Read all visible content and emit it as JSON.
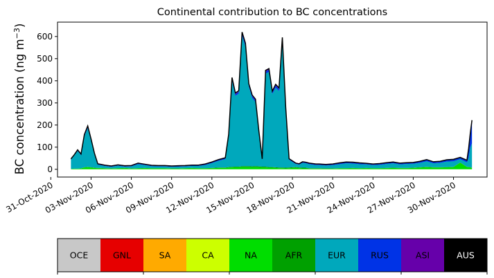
{
  "chart_data": {
    "type": "area",
    "title": "Continental contribution to BC concentrations",
    "ylabel": "BC concentration (ng m",
    "ylabel_sup": "−3",
    "ylabel_close": ")",
    "xlabel": "",
    "ylim": [
      -35,
      665
    ],
    "xlim": [
      "2020-10-31T12:00",
      "2020-12-02T12:00"
    ],
    "yticks": [
      0,
      100,
      200,
      300,
      400,
      500,
      600
    ],
    "xticks": [
      {
        "date": "2020-10-31",
        "label": "31-Oct-2020"
      },
      {
        "date": "2020-11-03",
        "label": "03-Nov-2020"
      },
      {
        "date": "2020-11-06",
        "label": "06-Nov-2020"
      },
      {
        "date": "2020-11-09",
        "label": "09-Nov-2020"
      },
      {
        "date": "2020-11-12",
        "label": "12-Nov-2020"
      },
      {
        "date": "2020-11-15",
        "label": "15-Nov-2020"
      },
      {
        "date": "2020-11-18",
        "label": "18-Nov-2020"
      },
      {
        "date": "2020-11-21",
        "label": "21-Nov-2020"
      },
      {
        "date": "2020-11-24",
        "label": "24-Nov-2020"
      },
      {
        "date": "2020-11-27",
        "label": "27-Nov-2020"
      },
      {
        "date": "2020-11-30",
        "label": "30-Nov-2020"
      }
    ],
    "grid": false,
    "legend_placement": "bottom colorbar",
    "total_line_color": "#000000",
    "x": [
      "2020-11-01T12:00",
      "2020-11-01T18:00",
      "2020-11-02T00:00",
      "2020-11-02T06:00",
      "2020-11-02T12:00",
      "2020-11-02T18:00",
      "2020-11-03T00:00",
      "2020-11-03T06:00",
      "2020-11-03T12:00",
      "2020-11-03T18:00",
      "2020-11-04T00:00",
      "2020-11-04T12:00",
      "2020-11-05T00:00",
      "2020-11-05T12:00",
      "2020-11-06T00:00",
      "2020-11-06T12:00",
      "2020-11-07T00:00",
      "2020-11-07T12:00",
      "2020-11-08T00:00",
      "2020-11-08T12:00",
      "2020-11-09T00:00",
      "2020-11-09T12:00",
      "2020-11-10T00:00",
      "2020-11-10T12:00",
      "2020-11-11T00:00",
      "2020-11-11T12:00",
      "2020-11-12T00:00",
      "2020-11-12T12:00",
      "2020-11-13T00:00",
      "2020-11-13T06:00",
      "2020-11-13T12:00",
      "2020-11-13T18:00",
      "2020-11-14T00:00",
      "2020-11-14T06:00",
      "2020-11-14T12:00",
      "2020-11-14T18:00",
      "2020-11-15T00:00",
      "2020-11-15T06:00",
      "2020-11-15T12:00",
      "2020-11-15T18:00",
      "2020-11-16T00:00",
      "2020-11-16T06:00",
      "2020-11-16T12:00",
      "2020-11-16T18:00",
      "2020-11-17T00:00",
      "2020-11-17T06:00",
      "2020-11-17T12:00",
      "2020-11-17T18:00",
      "2020-11-18T00:00",
      "2020-11-18T06:00",
      "2020-11-18T12:00",
      "2020-11-18T18:00",
      "2020-11-19T00:00",
      "2020-11-19T06:00",
      "2020-11-19T12:00",
      "2020-11-19T18:00",
      "2020-11-20T00:00",
      "2020-11-20T06:00",
      "2020-11-20T12:00",
      "2020-11-21T00:00",
      "2020-11-21T12:00",
      "2020-11-22T00:00",
      "2020-11-22T12:00",
      "2020-11-23T00:00",
      "2020-11-23T12:00",
      "2020-11-24T00:00",
      "2020-11-24T12:00",
      "2020-11-25T00:00",
      "2020-11-25T12:00",
      "2020-11-26T00:00",
      "2020-11-26T12:00",
      "2020-11-27T00:00",
      "2020-11-27T12:00",
      "2020-11-28T00:00",
      "2020-11-28T12:00",
      "2020-11-29T00:00",
      "2020-11-29T12:00",
      "2020-11-30T00:00",
      "2020-11-30T12:00",
      "2020-12-01T00:00",
      "2020-12-01T03:00",
      "2020-12-01T06:00",
      "2020-12-01T09:00"
    ],
    "series": [
      {
        "name": "OCE",
        "color": "#c8c8c8",
        "values": [
          0,
          0,
          0,
          0,
          0,
          0,
          0,
          0,
          0,
          0,
          0,
          0,
          0,
          0,
          0,
          0,
          0,
          0,
          0,
          0,
          0,
          0,
          0,
          0,
          0,
          0,
          0,
          0,
          0,
          0,
          0,
          0,
          0,
          0,
          0,
          0,
          0,
          0,
          0,
          0,
          0,
          0,
          0,
          0,
          0,
          0,
          0,
          0,
          0,
          0,
          0,
          0,
          0,
          0,
          0,
          0,
          0,
          0,
          0,
          0,
          0,
          0,
          0,
          0,
          0,
          0,
          0,
          0,
          0,
          0,
          0,
          0,
          0,
          0,
          0,
          0,
          0,
          0,
          0,
          0,
          0,
          0,
          0
        ]
      },
      {
        "name": "GNL",
        "color": "#e60000",
        "values": [
          0,
          0,
          0,
          0,
          0,
          0,
          0,
          0,
          0,
          0,
          0,
          0,
          0,
          0,
          0,
          0,
          0,
          0,
          0,
          0,
          0,
          0,
          0,
          0,
          0,
          0,
          0,
          0,
          0,
          0,
          0,
          0,
          0,
          0,
          0,
          0,
          0,
          0,
          0,
          0,
          0,
          0,
          0,
          0,
          0,
          0,
          0,
          0,
          0,
          0,
          0,
          0,
          0,
          0,
          0,
          0,
          0,
          0,
          0,
          0,
          0,
          0,
          0,
          0,
          0,
          0,
          0,
          0,
          0,
          0,
          0,
          0,
          0,
          0,
          0,
          0,
          0,
          0,
          0,
          0,
          0,
          0,
          0
        ]
      },
      {
        "name": "SA",
        "color": "#ffaa00",
        "values": [
          0,
          0,
          0,
          0,
          0,
          0,
          0,
          0,
          0,
          0,
          0,
          0,
          0,
          0,
          0,
          0,
          0,
          0,
          0,
          0,
          0,
          0,
          0,
          0,
          0,
          0,
          0,
          0,
          0,
          0,
          0,
          0,
          0,
          0,
          0,
          0,
          0,
          0,
          0,
          0,
          0,
          0,
          0,
          0,
          0,
          0,
          0,
          0,
          0,
          0,
          0,
          0,
          0,
          0,
          0,
          0,
          0,
          0,
          0,
          0,
          0,
          0,
          0,
          0,
          0,
          0,
          0,
          0,
          0,
          0,
          0,
          0,
          0,
          0,
          0,
          0,
          0,
          0,
          0,
          0,
          0,
          0,
          0
        ]
      },
      {
        "name": "CA",
        "color": "#ccff00",
        "values": [
          0,
          0,
          0,
          0,
          0,
          0,
          0,
          0,
          0,
          0,
          0,
          0,
          0,
          0,
          0,
          0,
          0,
          0,
          0,
          0,
          0,
          0,
          0,
          0,
          0,
          0,
          0,
          0,
          0,
          0,
          0,
          0,
          0,
          0,
          0,
          0,
          0,
          0,
          0,
          0,
          0,
          0,
          0,
          0,
          0,
          0,
          0,
          0,
          0,
          0,
          0,
          0,
          0,
          0,
          0,
          0,
          0,
          0,
          0,
          0,
          0,
          0,
          0,
          0,
          0,
          0,
          0,
          0,
          0,
          0,
          0,
          0,
          0,
          0,
          0,
          0,
          0,
          0,
          0,
          0,
          0,
          0,
          0
        ]
      },
      {
        "name": "NA",
        "color": "#00dd00",
        "values": [
          2,
          3,
          3,
          4,
          8,
          10,
          8,
          6,
          5,
          5,
          4,
          3,
          4,
          5,
          3,
          4,
          5,
          4,
          4,
          4,
          3,
          3,
          4,
          5,
          4,
          4,
          5,
          6,
          6,
          8,
          8,
          9,
          9,
          10,
          10,
          10,
          9,
          10,
          9,
          8,
          8,
          7,
          7,
          6,
          5,
          5,
          4,
          5,
          6,
          7,
          5,
          4,
          4,
          3,
          3,
          3,
          3,
          3,
          3,
          3,
          4,
          4,
          5,
          4,
          5,
          4,
          4,
          5,
          6,
          5,
          5,
          6,
          8,
          10,
          8,
          8,
          9,
          10,
          30,
          10,
          10,
          8,
          6
        ]
      },
      {
        "name": "AFR",
        "color": "#00a000",
        "values": [
          0,
          0,
          0,
          0,
          1,
          1,
          1,
          1,
          1,
          1,
          1,
          1,
          1,
          1,
          1,
          1,
          1,
          1,
          1,
          1,
          1,
          1,
          1,
          1,
          1,
          1,
          1,
          2,
          2,
          2,
          3,
          3,
          3,
          4,
          4,
          4,
          4,
          4,
          4,
          4,
          4,
          3,
          3,
          3,
          3,
          3,
          3,
          3,
          3,
          3,
          3,
          3,
          3,
          2,
          2,
          2,
          2,
          1,
          1,
          1,
          1,
          1,
          1,
          1,
          1,
          1,
          1,
          1,
          1,
          1,
          1,
          1,
          1,
          1,
          1,
          1,
          1,
          1,
          1,
          1,
          1,
          1,
          1
        ]
      },
      {
        "name": "EUR",
        "color": "#00a8bc",
        "values": [
          42,
          60,
          80,
          60,
          140,
          175,
          120,
          60,
          14,
          12,
          10,
          7,
          11,
          6,
          9,
          18,
          13,
          9,
          8,
          8,
          7,
          8,
          8,
          9,
          10,
          14,
          22,
          30,
          38,
          140,
          390,
          320,
          330,
          590,
          540,
          360,
          310,
          290,
          150,
          30,
          420,
          430,
          330,
          360,
          345,
          570,
          260,
          35,
          24,
          14,
          13,
          22,
          20,
          18,
          16,
          14,
          14,
          14,
          13,
          15,
          18,
          22,
          20,
          18,
          16,
          14,
          15,
          18,
          20,
          16,
          18,
          18,
          20,
          25,
          18,
          20,
          25,
          25,
          15,
          20,
          40,
          90,
          110
        ]
      },
      {
        "name": "RUS",
        "color": "#0033e6",
        "values": [
          2,
          2,
          3,
          3,
          5,
          7,
          5,
          4,
          3,
          2,
          2,
          2,
          2,
          2,
          2,
          3,
          2,
          2,
          2,
          2,
          2,
          2,
          2,
          2,
          2,
          3,
          3,
          4,
          4,
          5,
          9,
          8,
          8,
          10,
          10,
          8,
          8,
          8,
          6,
          3,
          10,
          10,
          8,
          10,
          10,
          12,
          8,
          3,
          3,
          2,
          2,
          3,
          3,
          3,
          3,
          3,
          3,
          3,
          3,
          3,
          4,
          4,
          4,
          4,
          3,
          3,
          4,
          4,
          4,
          4,
          4,
          4,
          5,
          6,
          5,
          5,
          6,
          7,
          6,
          8,
          40,
          60,
          100
        ]
      },
      {
        "name": "ASI",
        "color": "#6600aa",
        "values": [
          1,
          1,
          2,
          2,
          3,
          3,
          3,
          2,
          2,
          2,
          2,
          2,
          2,
          2,
          2,
          2,
          2,
          2,
          2,
          2,
          2,
          2,
          2,
          2,
          2,
          2,
          2,
          2,
          2,
          3,
          5,
          5,
          5,
          6,
          6,
          5,
          5,
          5,
          4,
          2,
          5,
          5,
          5,
          5,
          5,
          6,
          5,
          2,
          2,
          2,
          2,
          2,
          2,
          2,
          2,
          2,
          2,
          2,
          2,
          2,
          2,
          2,
          2,
          2,
          2,
          2,
          2,
          2,
          2,
          2,
          2,
          2,
          2,
          2,
          2,
          2,
          2,
          2,
          2,
          2,
          3,
          4,
          5
        ]
      },
      {
        "name": "AUS",
        "color": "#000000",
        "values": [
          0,
          0,
          0,
          0,
          0,
          0,
          0,
          0,
          0,
          0,
          0,
          0,
          0,
          0,
          0,
          0,
          0,
          0,
          0,
          0,
          0,
          0,
          0,
          0,
          0,
          0,
          0,
          0,
          0,
          0,
          0,
          0,
          0,
          0,
          0,
          0,
          0,
          0,
          0,
          0,
          0,
          0,
          0,
          0,
          0,
          0,
          0,
          0,
          0,
          0,
          0,
          0,
          0,
          0,
          0,
          0,
          0,
          0,
          0,
          0,
          0,
          0,
          0,
          0,
          0,
          0,
          0,
          0,
          0,
          0,
          0,
          0,
          0,
          0,
          0,
          0,
          0,
          0,
          0,
          0,
          0,
          0,
          0
        ]
      }
    ]
  },
  "legend": {
    "items": [
      {
        "label": "OCE",
        "color": "#c8c8c8",
        "text_color": "#000000"
      },
      {
        "label": "GNL",
        "color": "#e60000",
        "text_color": "#000000"
      },
      {
        "label": "SA",
        "color": "#ffaa00",
        "text_color": "#000000"
      },
      {
        "label": "CA",
        "color": "#ccff00",
        "text_color": "#000000"
      },
      {
        "label": "NA",
        "color": "#00dd00",
        "text_color": "#000000"
      },
      {
        "label": "AFR",
        "color": "#00a000",
        "text_color": "#000000"
      },
      {
        "label": "EUR",
        "color": "#00a8bc",
        "text_color": "#000000"
      },
      {
        "label": "RUS",
        "color": "#0033e6",
        "text_color": "#000000"
      },
      {
        "label": "ASI",
        "color": "#6600aa",
        "text_color": "#000000"
      },
      {
        "label": "AUS",
        "color": "#000000",
        "text_color": "#ffffff"
      }
    ]
  }
}
